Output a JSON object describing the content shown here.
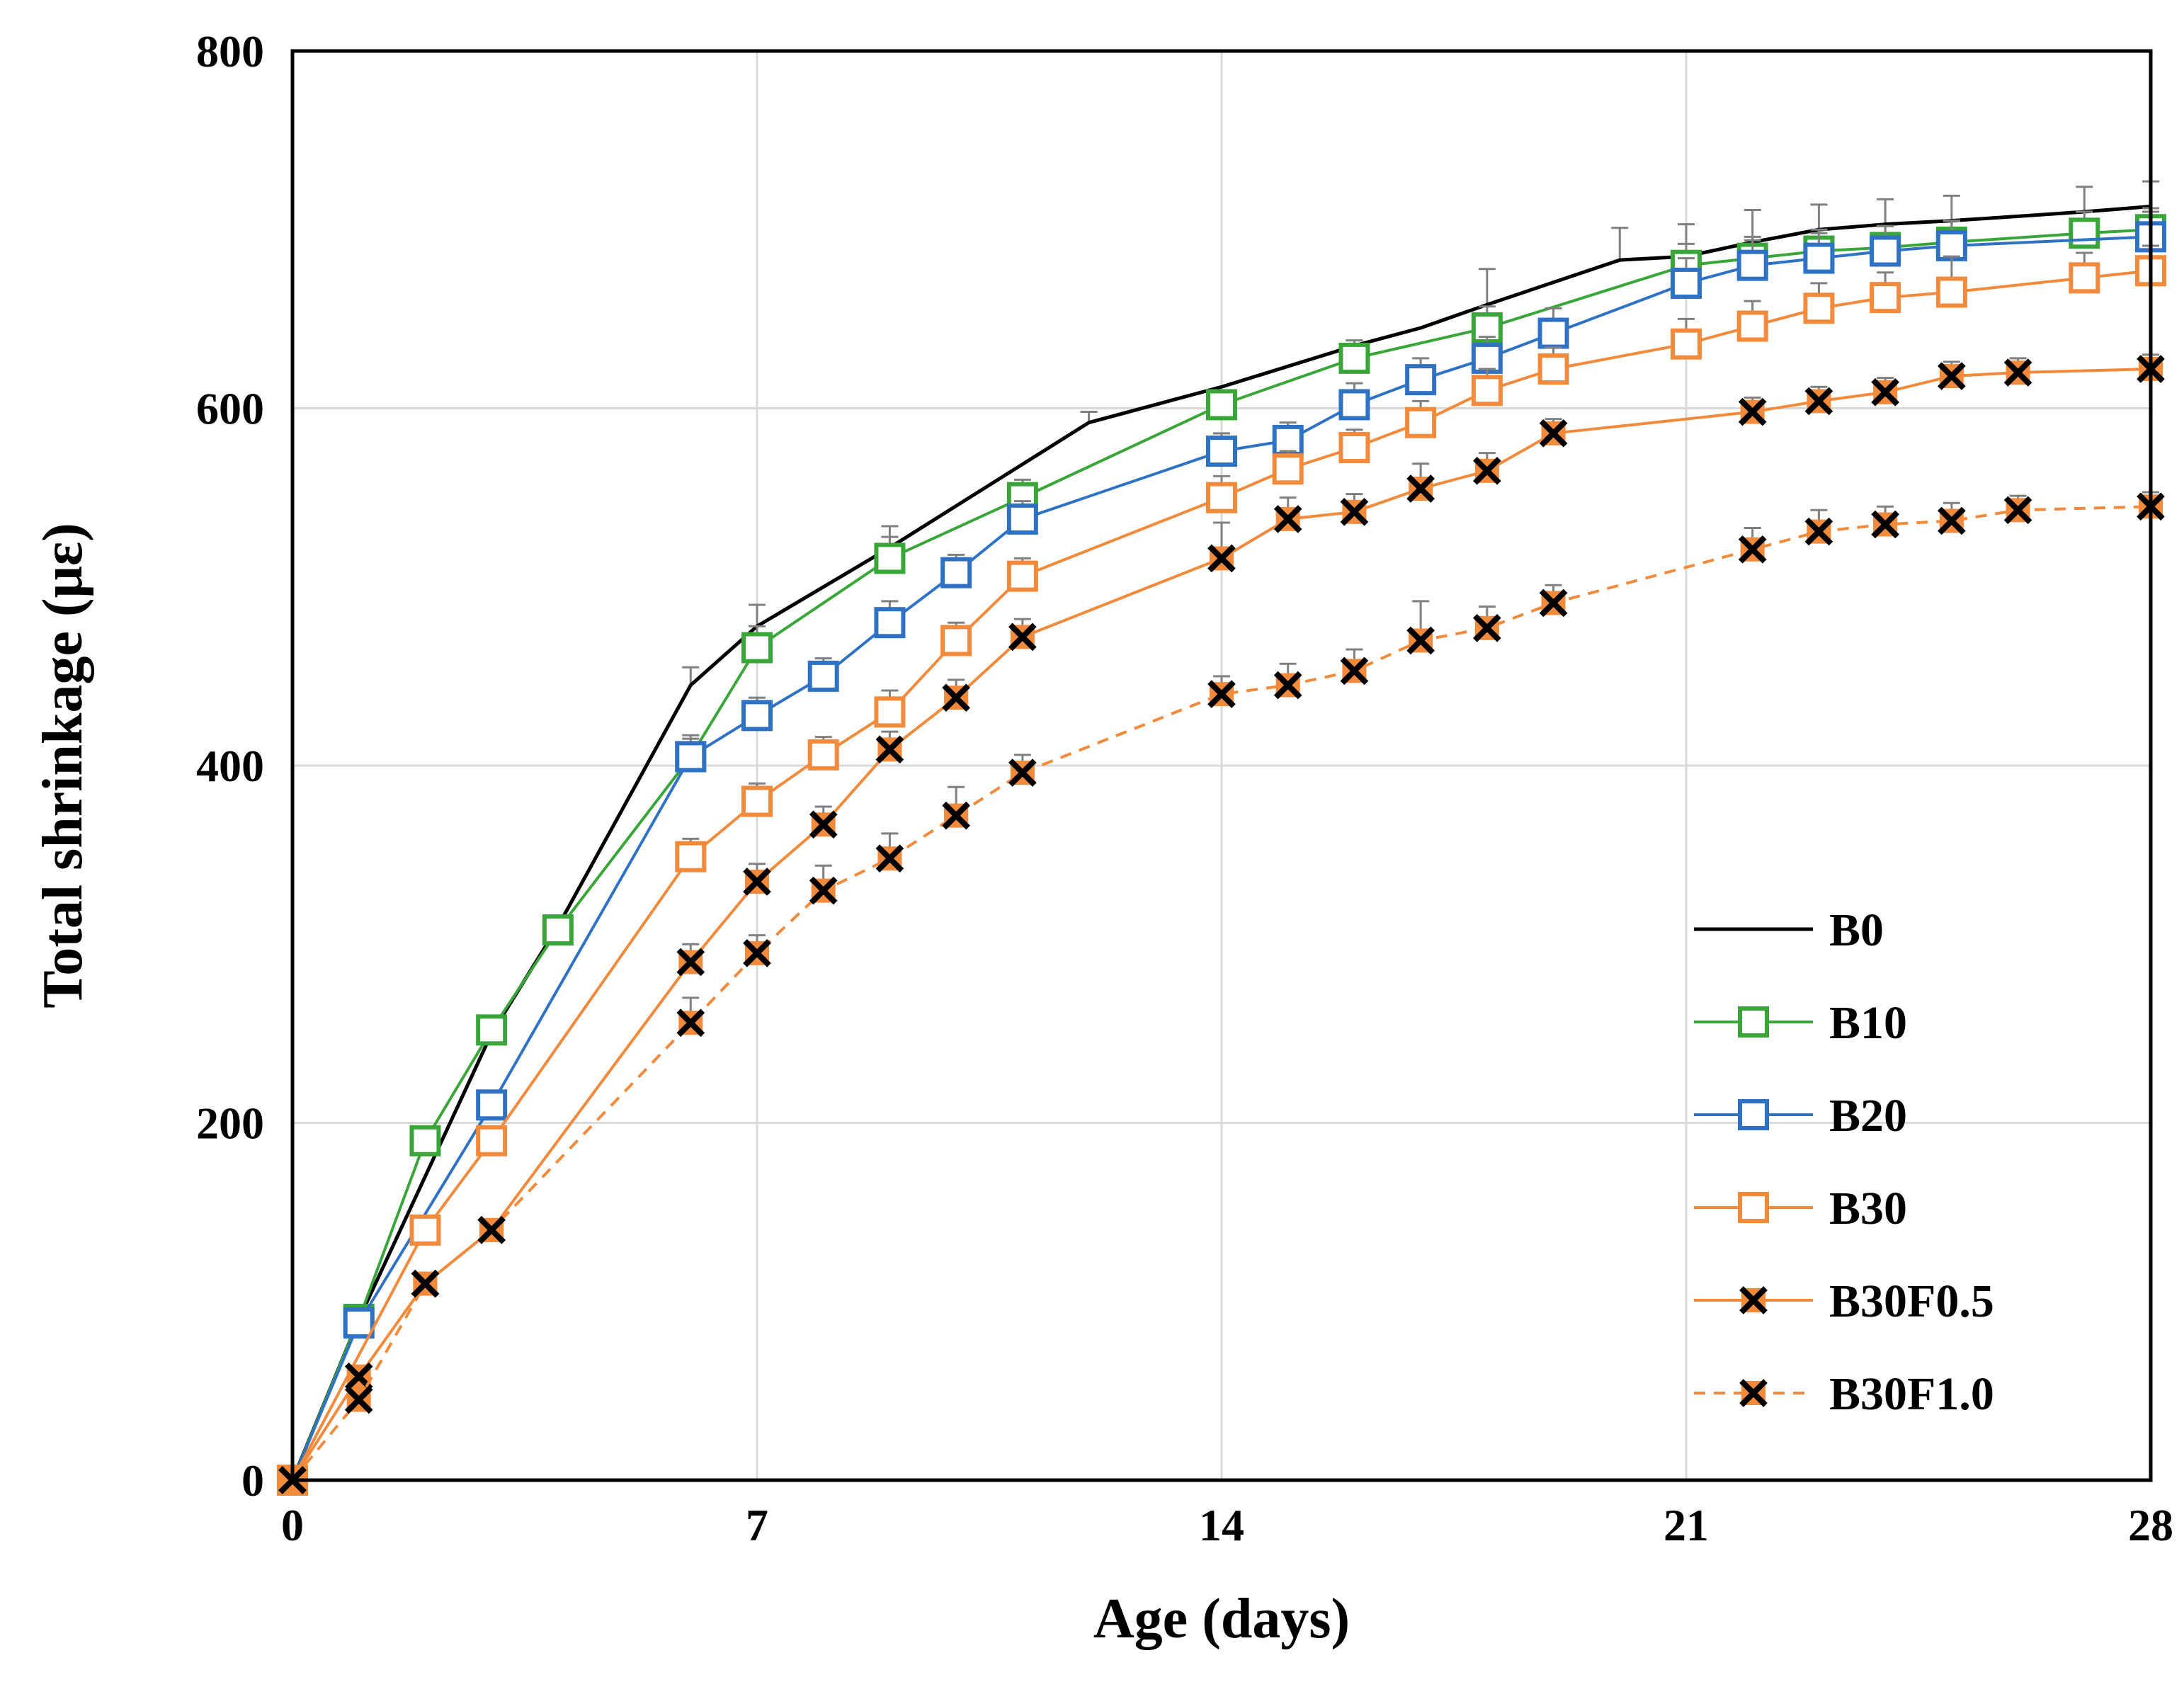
{
  "chart_data": {
    "type": "line",
    "title": "",
    "xlabel": "Age (days)",
    "ylabel": "Total shrinkage (με)",
    "xlim": [
      0,
      28
    ],
    "ylim": [
      0,
      800
    ],
    "xticks": [
      0,
      7,
      14,
      21,
      28
    ],
    "yticks": [
      0,
      200,
      400,
      600,
      800
    ],
    "grid": true,
    "legend_position": "bottom-right",
    "series": [
      {
        "name": "B0",
        "color": "#000000",
        "marker": "none",
        "dash": "solid",
        "x": [
          0,
          1,
          2,
          3,
          4,
          6,
          7,
          9,
          12,
          14,
          16,
          17,
          18,
          20,
          21,
          22,
          23,
          24,
          25,
          27,
          28
        ],
        "y": [
          0,
          90,
          170,
          250,
          310,
          445,
          478,
          522,
          592,
          612,
          635,
          645,
          658,
          683,
          685,
          693,
          700,
          703,
          705,
          710,
          713
        ],
        "error": [
          0,
          0,
          0,
          0,
          0,
          10,
          12,
          12,
          6,
          0,
          0,
          0,
          20,
          18,
          18,
          18,
          14,
          14,
          14,
          14,
          14
        ]
      },
      {
        "name": "B10",
        "color": "#3aa63a",
        "marker": "square",
        "dash": "solid",
        "x": [
          0,
          1,
          2,
          3,
          4,
          6,
          7,
          9,
          11,
          14,
          16,
          18,
          21,
          22,
          23,
          24,
          25,
          27,
          28
        ],
        "y": [
          0,
          90,
          190,
          252,
          308,
          405,
          466,
          516,
          550,
          602,
          628,
          645,
          680,
          684,
          688,
          690,
          693,
          698,
          700
        ],
        "error": [
          0,
          0,
          0,
          0,
          0,
          10,
          12,
          12,
          10,
          8,
          10,
          12,
          12,
          12,
          12,
          12,
          12,
          12,
          12
        ]
      },
      {
        "name": "B20",
        "color": "#2f72c4",
        "marker": "square",
        "dash": "solid",
        "x": [
          0,
          1,
          3,
          6,
          7,
          8,
          9,
          10,
          11,
          14,
          15,
          16,
          17,
          18,
          19,
          21,
          22,
          23,
          24,
          25,
          28
        ],
        "y": [
          0,
          88,
          210,
          405,
          428,
          450,
          480,
          508,
          538,
          576,
          582,
          602,
          616,
          628,
          642,
          670,
          680,
          684,
          688,
          691,
          696
        ],
        "error": [
          0,
          0,
          0,
          12,
          10,
          10,
          12,
          10,
          10,
          10,
          10,
          12,
          12,
          12,
          14,
          14,
          14,
          14,
          14,
          14,
          14
        ]
      },
      {
        "name": "B30",
        "color": "#f28a3c",
        "marker": "square",
        "dash": "solid",
        "x": [
          0,
          2,
          3,
          6,
          7,
          8,
          9,
          10,
          11,
          14,
          15,
          16,
          17,
          18,
          19,
          21,
          22,
          23,
          24,
          25,
          27,
          28
        ],
        "y": [
          0,
          140,
          190,
          349,
          380,
          406,
          430,
          470,
          506,
          550,
          566,
          578,
          592,
          610,
          622,
          636,
          646,
          656,
          662,
          665,
          673,
          677
        ],
        "error": [
          0,
          0,
          0,
          10,
          10,
          10,
          12,
          10,
          10,
          12,
          10,
          10,
          12,
          12,
          12,
          14,
          14,
          14,
          14,
          20,
          14,
          14
        ]
      },
      {
        "name": "B30F0.5",
        "color": "#f28a3c",
        "marker": "x",
        "dash": "solid",
        "x": [
          0,
          1,
          2,
          3,
          6,
          7,
          8,
          9,
          10,
          11,
          14,
          15,
          16,
          17,
          18,
          19,
          22,
          23,
          24,
          25,
          26,
          28
        ],
        "y": [
          0,
          58,
          110,
          140,
          290,
          335,
          367,
          409,
          438,
          472,
          516,
          538,
          542,
          555,
          565,
          586,
          598,
          604,
          609,
          618,
          620,
          622
        ],
        "error": [
          0,
          0,
          0,
          0,
          10,
          10,
          10,
          10,
          10,
          10,
          20,
          12,
          10,
          14,
          10,
          8,
          8,
          8,
          8,
          8,
          8,
          8
        ]
      },
      {
        "name": "B30F1.0",
        "color": "#f28a3c",
        "marker": "x",
        "dash": "dashed",
        "x": [
          0,
          1,
          2,
          3,
          6,
          7,
          8,
          9,
          10,
          11,
          14,
          15,
          16,
          17,
          18,
          19,
          22,
          23,
          24,
          25,
          26,
          28
        ],
        "y": [
          0,
          45,
          110,
          140,
          256,
          295,
          330,
          348,
          372,
          396,
          440,
          445,
          453,
          470,
          477,
          491,
          521,
          531,
          535,
          537,
          543,
          545
        ],
        "error": [
          0,
          0,
          0,
          0,
          14,
          10,
          14,
          14,
          16,
          10,
          10,
          12,
          12,
          22,
          12,
          10,
          12,
          12,
          10,
          10,
          8,
          8
        ]
      }
    ]
  }
}
